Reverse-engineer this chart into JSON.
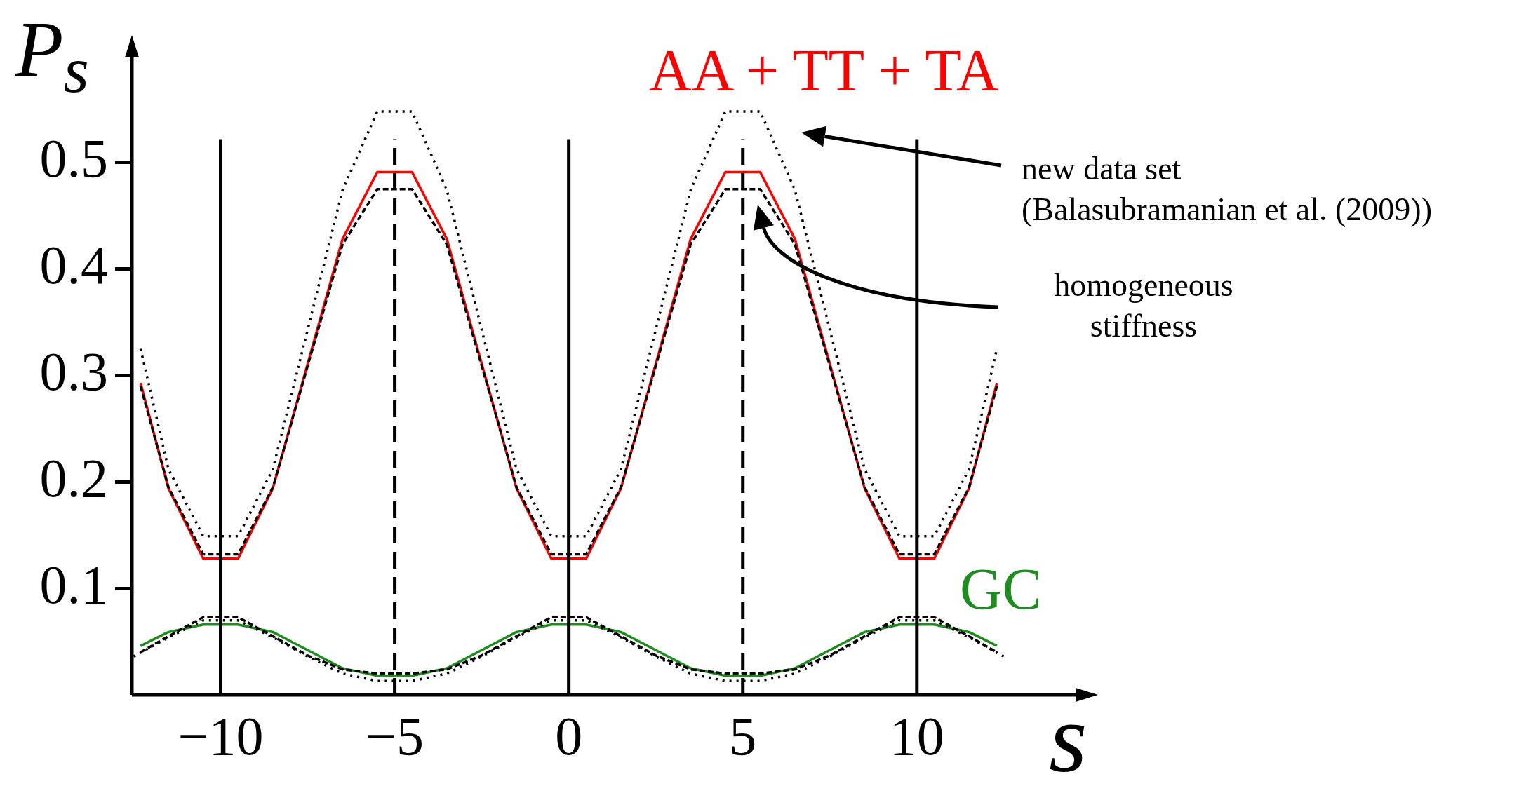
{
  "chart_data": {
    "type": "line",
    "xlabel": "s",
    "ylabel": "P$_{s}$",
    "xlim": [
      -12.55,
      14.6
    ],
    "ylim": [
      0,
      0.6
    ],
    "xticks": [
      {
        "value": -10,
        "label": "−10"
      },
      {
        "value": -5,
        "label": "−5"
      },
      0,
      5,
      10
    ],
    "yticks": [
      0.1,
      0.2,
      0.3,
      0.4,
      0.5
    ],
    "legend": false,
    "marker": "none",
    "annotations": [
      "new data set\n(Balasubramanian et al. (2009))",
      "homogeneous\nstiffness"
    ],
    "ref_lines": [
      {
        "axis": "x",
        "value": -10,
        "color": "#000000",
        "line_style": "solid"
      },
      {
        "axis": "x",
        "value": -5,
        "color": "#000000",
        "line_style": "dashed"
      },
      {
        "axis": "x",
        "value": 0,
        "color": "#000000",
        "line_style": "solid"
      },
      {
        "axis": "x",
        "value": 5,
        "color": "#000000",
        "line_style": "dashed"
      },
      {
        "axis": "x",
        "value": 10,
        "color": "#000000",
        "line_style": "solid"
      }
    ],
    "series": [
      {
        "name": "AA + TT + TA",
        "color": "#ff0000",
        "line_style": "solid",
        "x": [
          -12.3,
          -11.5,
          -10.5,
          -9.5,
          -8.5,
          -6.5,
          -5.5,
          -4.5,
          -3.5,
          -1.5,
          -0.5,
          0.5,
          1.5,
          3.5,
          4.5,
          5.5,
          6.5,
          8.5,
          9.5,
          10.5,
          11.5,
          12.3
        ],
        "values": [
          0.293,
          0.194,
          0.128,
          0.128,
          0.194,
          0.428,
          0.491,
          0.491,
          0.428,
          0.194,
          0.128,
          0.128,
          0.194,
          0.428,
          0.491,
          0.491,
          0.428,
          0.194,
          0.128,
          0.128,
          0.194,
          0.293
        ]
      },
      {
        "color": "#000000",
        "line_style": "dashed",
        "x": [
          -12.3,
          -11.5,
          -10.5,
          -9.5,
          -8.5,
          -6.5,
          -5.5,
          -4.5,
          -3.5,
          -1.5,
          -0.5,
          0.5,
          1.5,
          3.5,
          4.5,
          5.5,
          6.5,
          8.5,
          9.5,
          10.5,
          11.5,
          12.3
        ],
        "values": [
          0.29,
          0.195,
          0.132,
          0.132,
          0.195,
          0.423,
          0.475,
          0.475,
          0.423,
          0.195,
          0.132,
          0.132,
          0.195,
          0.423,
          0.475,
          0.475,
          0.423,
          0.195,
          0.132,
          0.132,
          0.195,
          0.29
        ]
      },
      {
        "color": "#000000",
        "line_style": "dotted",
        "x": [
          -12.3,
          -11.5,
          -10.5,
          -9.5,
          -8.5,
          -6.5,
          -5.5,
          -4.5,
          -3.5,
          -1.5,
          -0.5,
          0.5,
          1.5,
          3.5,
          4.5,
          5.5,
          6.5,
          8.5,
          9.5,
          10.5,
          11.5,
          12.3
        ],
        "values": [
          0.325,
          0.212,
          0.149,
          0.149,
          0.212,
          0.474,
          0.548,
          0.548,
          0.474,
          0.212,
          0.149,
          0.149,
          0.212,
          0.474,
          0.548,
          0.548,
          0.474,
          0.212,
          0.149,
          0.149,
          0.212,
          0.325
        ]
      },
      {
        "name": "GC",
        "color": "#1f8c1f",
        "line_style": "solid",
        "x": [
          -12.3,
          -11.5,
          -10.5,
          -9.5,
          -8.5,
          -7.5,
          -6.5,
          -5.5,
          -4.5,
          -3.5,
          -2.5,
          -1.5,
          -0.5,
          0.5,
          1.5,
          2.5,
          3.5,
          4.5,
          5.5,
          6.5,
          7.5,
          8.5,
          9.5,
          10.5,
          11.5,
          12.3
        ],
        "values": [
          0.046,
          0.059,
          0.066,
          0.066,
          0.059,
          0.042,
          0.025,
          0.018,
          0.018,
          0.025,
          0.042,
          0.059,
          0.066,
          0.066,
          0.059,
          0.042,
          0.025,
          0.018,
          0.018,
          0.025,
          0.042,
          0.059,
          0.066,
          0.066,
          0.059,
          0.046
        ]
      },
      {
        "color": "#000000",
        "line_style": "dashed",
        "x": [
          -12.3,
          -11.5,
          -10.5,
          -9.5,
          -8.5,
          -7.5,
          -6.5,
          -5.5,
          -4.5,
          -3.5,
          -2.5,
          -1.5,
          -0.5,
          0.5,
          1.5,
          2.5,
          3.5,
          4.5,
          5.5,
          6.5,
          7.5,
          8.5,
          9.5,
          10.5,
          11.5,
          12.3
        ],
        "values": [
          0.04,
          0.055,
          0.073,
          0.073,
          0.055,
          0.037,
          0.024,
          0.02,
          0.02,
          0.024,
          0.037,
          0.055,
          0.073,
          0.073,
          0.055,
          0.037,
          0.024,
          0.02,
          0.02,
          0.024,
          0.037,
          0.055,
          0.073,
          0.073,
          0.055,
          0.04
        ]
      },
      {
        "color": "#000000",
        "line_style": "dotted",
        "x": [
          -12.5,
          -11.5,
          -10.5,
          -9.5,
          -8.5,
          -7.5,
          -6.5,
          -5.5,
          -4.5,
          -3.5,
          -2.5,
          -1.5,
          -0.5,
          0.5,
          1.5,
          2.5,
          3.5,
          4.5,
          5.5,
          6.5,
          7.5,
          8.5,
          9.5,
          10.5,
          11.5,
          12.5
        ],
        "values": [
          0.036,
          0.054,
          0.07,
          0.07,
          0.054,
          0.036,
          0.02,
          0.013,
          0.013,
          0.02,
          0.036,
          0.054,
          0.07,
          0.07,
          0.054,
          0.036,
          0.02,
          0.013,
          0.013,
          0.02,
          0.036,
          0.054,
          0.07,
          0.07,
          0.054,
          0.036
        ]
      }
    ]
  }
}
